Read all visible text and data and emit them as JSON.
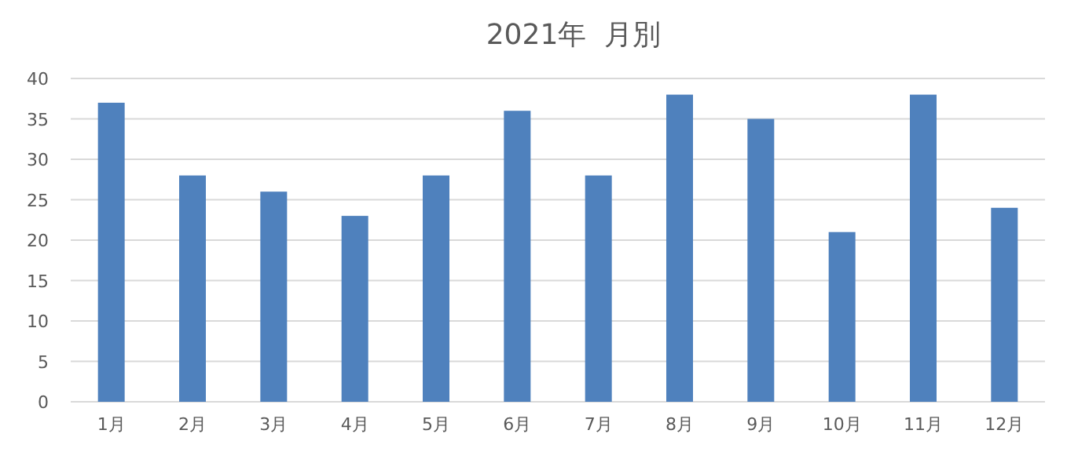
{
  "chart_data": {
    "type": "bar",
    "title": "2021年  月別",
    "categories": [
      "1月",
      "2月",
      "3月",
      "4月",
      "5月",
      "6月",
      "7月",
      "8月",
      "9月",
      "10月",
      "11月",
      "12月"
    ],
    "values": [
      37,
      28,
      26,
      23,
      28,
      36,
      28,
      38,
      35,
      21,
      38,
      24
    ],
    "color": "#4f81bd",
    "ylim": [
      0,
      40
    ],
    "yticks": [
      0,
      5,
      10,
      15,
      20,
      25,
      30,
      35,
      40
    ],
    "grid": "y"
  }
}
